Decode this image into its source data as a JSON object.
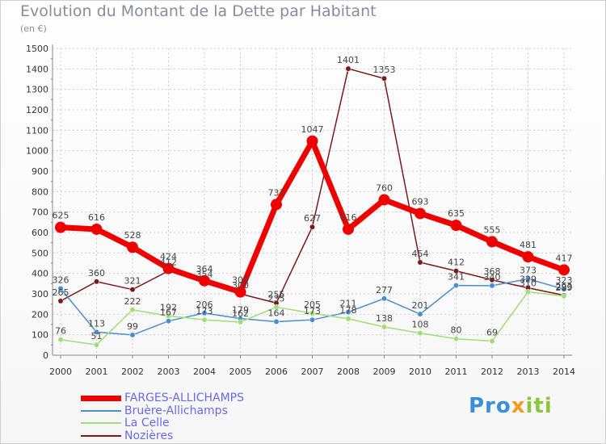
{
  "title": "Evolution du Montant de la Dette par Habitant",
  "unit": "(en €)",
  "logo": {
    "parts": [
      "Pro",
      "x",
      "iti"
    ],
    "colors": [
      "#3a8fd6",
      "#f29a1f",
      "#8cc63f"
    ]
  },
  "chart_data": {
    "type": "line",
    "title": "Evolution du Montant de la Dette par Habitant",
    "ylabel": "(en €)",
    "x": [
      2000,
      2001,
      2002,
      2003,
      2004,
      2005,
      2006,
      2007,
      2008,
      2009,
      2010,
      2011,
      2012,
      2013,
      2014
    ],
    "ylim": [
      0,
      1500
    ],
    "yticks": [
      0,
      100,
      200,
      300,
      400,
      500,
      600,
      700,
      800,
      900,
      1000,
      1100,
      1200,
      1300,
      1400,
      1500
    ],
    "grid": true,
    "legend": "bottom-left",
    "series": [
      {
        "name": "FARGES-ALLICHAMPS",
        "color": "#ee0000",
        "values": [
          625,
          616,
          528,
          424,
          364,
          309,
          737,
          1047,
          616,
          760,
          693,
          635,
          555,
          481,
          417
        ]
      },
      {
        "name": "Bruère-Allichamps",
        "color": "#4a8ed0",
        "values": [
          326,
          113,
          99,
          167,
          206,
          179,
          164,
          173,
          211,
          277,
          201,
          341,
          340,
          373,
          323
        ]
      },
      {
        "name": "La Celle",
        "color": "#a0dc78",
        "values": [
          76,
          51,
          222,
          192,
          173,
          162,
          235,
          205,
          178,
          138,
          108,
          80,
          69,
          310,
          289
        ]
      },
      {
        "name": "Nozières",
        "color": "#7a1a1a",
        "values": [
          265,
          360,
          321,
          412,
          354,
          300,
          255,
          627,
          1401,
          1353,
          454,
          412,
          368,
          329,
          293
        ]
      }
    ]
  }
}
